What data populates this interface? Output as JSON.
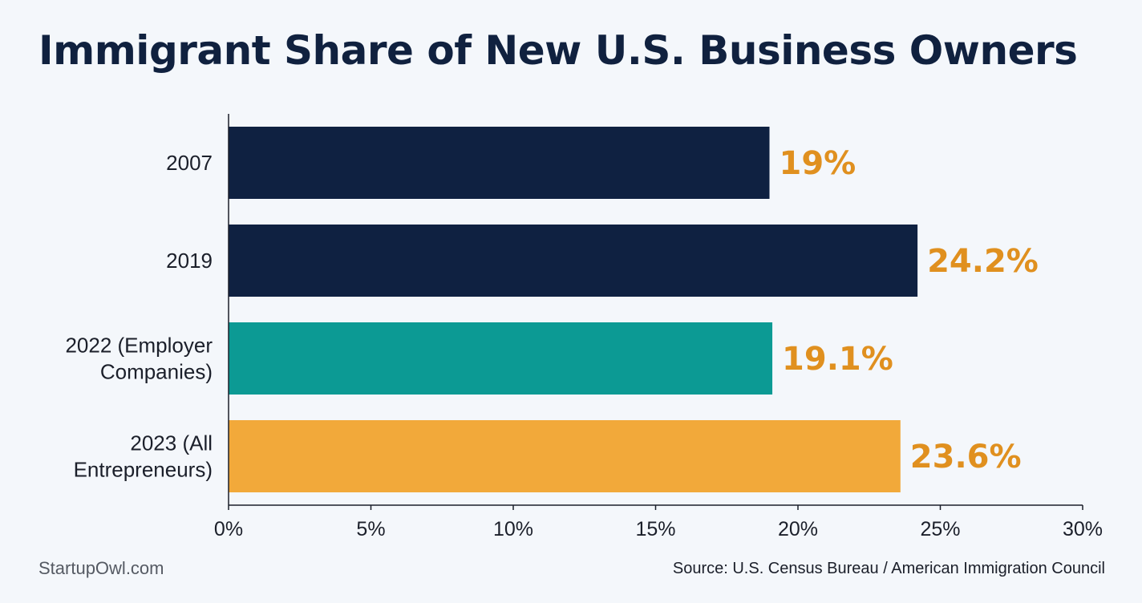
{
  "chart_data": {
    "type": "bar",
    "orientation": "horizontal",
    "title": "Immigrant Share of New U.S. Business Owners",
    "categories": [
      [
        "2007"
      ],
      [
        "2019"
      ],
      [
        "2022 (Employer",
        "Companies)"
      ],
      [
        "2023 (All",
        "Entrepreneurs)"
      ]
    ],
    "values": [
      19,
      24.2,
      19.1,
      23.6
    ],
    "value_labels": [
      "19%",
      "24.2%",
      "19.1%",
      "23.6%"
    ],
    "bar_colors": [
      "#0f2141",
      "#0f2141",
      "#0c9a94",
      "#f2a93a"
    ],
    "value_label_color": "#e0901f",
    "xlim": [
      0,
      30
    ],
    "xticks": [
      0,
      5,
      10,
      15,
      20,
      25,
      30
    ],
    "xtick_labels": [
      "0%",
      "5%",
      "10%",
      "15%",
      "20%",
      "25%",
      "30%"
    ],
    "xlabel": "",
    "ylabel": "",
    "grid": false,
    "legend": "none"
  },
  "footer": {
    "brand": "StartupOwl.com",
    "source": "Source: U.S. Census Bureau / American Immigration Council"
  }
}
